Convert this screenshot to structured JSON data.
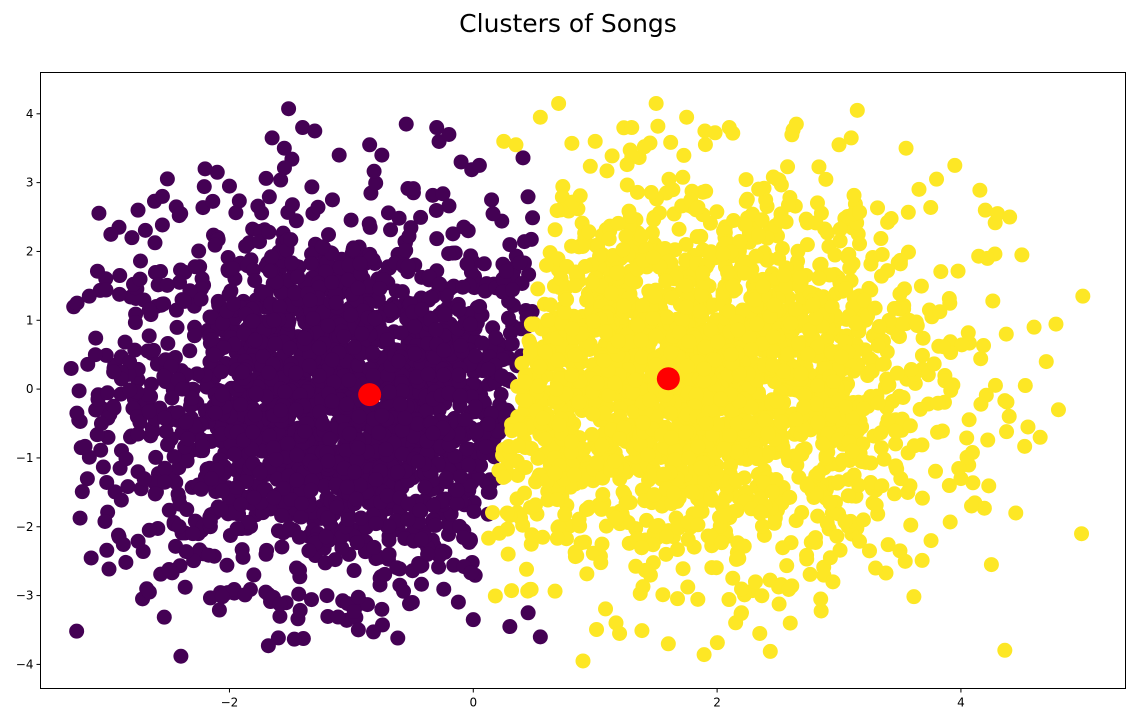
{
  "chart_data": {
    "type": "scatter",
    "title": "Clusters of Songs",
    "xlabel": "",
    "ylabel": "",
    "xlim": [
      -3.55,
      5.35
    ],
    "ylim": [
      -4.35,
      4.6
    ],
    "xticks": [
      -2,
      0,
      2,
      4
    ],
    "yticks": [
      -4,
      -3,
      -2,
      -1,
      0,
      1,
      2,
      3,
      4
    ],
    "xtick_labels": [
      "−2",
      "0",
      "2",
      "4"
    ],
    "ytick_labels": [
      "−4",
      "−3",
      "−2",
      "−1",
      "0",
      "1",
      "2",
      "3",
      "4"
    ],
    "grid": false,
    "legend": "none",
    "series": [
      {
        "color": "#440154",
        "center": [
          -1.1,
          -0.2
        ],
        "spread": [
          0.95,
          1.45
        ],
        "boundary_note": "left of x = 0.35 + 0.12*y",
        "sample_points": [
          [
            -3.25,
            1.25
          ],
          [
            -3.15,
            1.35
          ],
          [
            -3.1,
            0.5
          ],
          [
            -3.05,
            -0.5
          ],
          [
            -2.95,
            -0.25
          ],
          [
            -2.95,
            0.25
          ],
          [
            -2.9,
            1.65
          ],
          [
            -2.8,
            2.2
          ],
          [
            -2.75,
            2.6
          ],
          [
            -2.75,
            -1.2
          ],
          [
            -2.7,
            -1.3
          ],
          [
            -2.55,
            2.8
          ],
          [
            -2.4,
            2.55
          ],
          [
            -2.35,
            -1.75
          ],
          [
            -2.3,
            -2.1
          ],
          [
            -2.2,
            3.2
          ],
          [
            -2.1,
            3.15
          ],
          [
            -2.0,
            2.95
          ],
          [
            -1.8,
            -2.7
          ],
          [
            -1.7,
            -2.4
          ],
          [
            -1.65,
            3.65
          ],
          [
            -1.55,
            3.5
          ],
          [
            -1.45,
            -2.6
          ],
          [
            -1.4,
            3.8
          ],
          [
            -1.3,
            3.75
          ],
          [
            -1.2,
            -3.0
          ],
          [
            -1.1,
            3.4
          ],
          [
            -0.85,
            3.55
          ],
          [
            -0.75,
            3.4
          ],
          [
            -0.75,
            -3.2
          ],
          [
            -0.55,
            3.85
          ],
          [
            -0.5,
            -3.1
          ],
          [
            -0.3,
            3.8
          ],
          [
            -0.2,
            3.7
          ],
          [
            -0.1,
            3.3
          ],
          [
            0.0,
            -3.35
          ],
          [
            0.05,
            3.25
          ],
          [
            0.15,
            2.75
          ],
          [
            0.3,
            2.1
          ],
          [
            0.3,
            -3.45
          ],
          [
            0.45,
            -3.25
          ],
          [
            0.55,
            -3.6
          ]
        ]
      },
      {
        "color": "#fde725",
        "center": [
          1.8,
          0.15
        ],
        "spread": [
          1.0,
          1.45
        ],
        "boundary_note": "right of x = 0.35 + 0.12*y",
        "sample_points": [
          [
            0.25,
            3.6
          ],
          [
            0.35,
            3.55
          ],
          [
            0.55,
            3.95
          ],
          [
            0.7,
            4.15
          ],
          [
            0.9,
            -3.95
          ],
          [
            1.0,
            3.6
          ],
          [
            1.2,
            -3.55
          ],
          [
            1.3,
            3.8
          ],
          [
            1.5,
            4.15
          ],
          [
            1.6,
            -3.7
          ],
          [
            1.75,
            3.95
          ],
          [
            1.9,
            3.75
          ],
          [
            2.1,
            3.8
          ],
          [
            2.2,
            -3.25
          ],
          [
            2.35,
            -3.55
          ],
          [
            2.6,
            -3.4
          ],
          [
            2.65,
            3.85
          ],
          [
            2.85,
            -3.05
          ],
          [
            2.95,
            -2.8
          ],
          [
            3.0,
            3.55
          ],
          [
            3.1,
            3.65
          ],
          [
            3.15,
            4.05
          ],
          [
            3.2,
            -1.9
          ],
          [
            3.25,
            -2.35
          ],
          [
            3.3,
            -2.6
          ],
          [
            3.5,
            -2.35
          ],
          [
            3.55,
            3.5
          ],
          [
            3.8,
            3.05
          ],
          [
            3.95,
            3.25
          ],
          [
            4.0,
            -1.3
          ],
          [
            4.2,
            2.6
          ],
          [
            4.25,
            -2.55
          ],
          [
            4.3,
            2.55
          ],
          [
            4.4,
            2.5
          ],
          [
            4.45,
            -1.8
          ],
          [
            4.5,
            1.95
          ],
          [
            4.55,
            -0.55
          ],
          [
            4.6,
            0.9
          ],
          [
            4.65,
            -0.7
          ],
          [
            4.7,
            0.4
          ],
          [
            4.8,
            -0.3
          ],
          [
            5.0,
            1.35
          ]
        ]
      }
    ],
    "centroids": {
      "color": "#ff0000",
      "points": [
        [
          -0.85,
          -0.08
        ],
        [
          1.6,
          0.15
        ]
      ]
    }
  }
}
